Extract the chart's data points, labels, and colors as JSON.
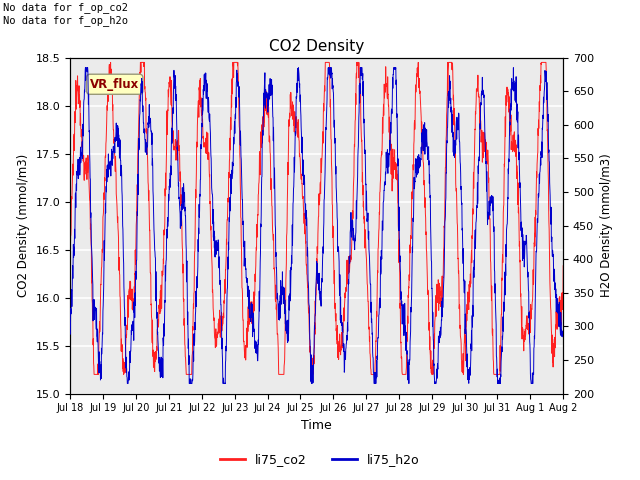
{
  "title": "CO2 Density",
  "xlabel": "Time",
  "ylabel_left": "CO2 Density (mmol/m3)",
  "ylabel_right": "H2O Density (mmol/m3)",
  "ylim_left": [
    15.0,
    18.5
  ],
  "ylim_right": [
    200,
    700
  ],
  "yticks_left": [
    15.0,
    15.5,
    16.0,
    16.5,
    17.0,
    17.5,
    18.0,
    18.5
  ],
  "yticks_right": [
    200,
    250,
    300,
    350,
    400,
    450,
    500,
    550,
    600,
    650,
    700
  ],
  "xtick_labels": [
    "Jul 18",
    "Jul 19",
    "Jul 20",
    "Jul 21",
    "Jul 22",
    "Jul 23",
    "Jul 24",
    "Jul 25",
    "Jul 26",
    "Jul 27",
    "Jul 28",
    "Jul 29",
    "Jul 30",
    "Jul 31",
    "Aug 1",
    "Aug 2"
  ],
  "annotation_text": "No data for f_op_co2\nNo data for f_op_h2o",
  "legend_box_label": "VR_flux",
  "legend_box_color": "#FFFFC0",
  "legend_box_text_color": "#8B0000",
  "co2_color": "#FF2020",
  "h2o_color": "#0000CC",
  "plot_bg_color": "#EBEBEB",
  "grid_color": "white",
  "legend_co2_label": "li75_co2",
  "legend_h2o_label": "li75_h2o"
}
